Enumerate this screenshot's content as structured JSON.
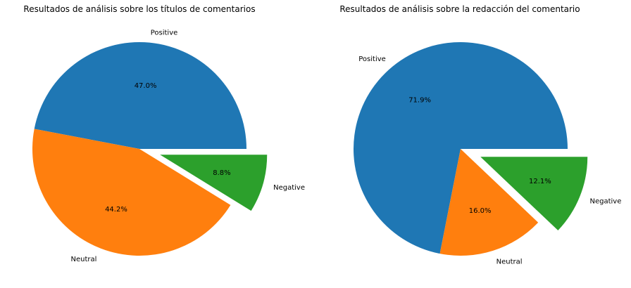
{
  "chart_data": [
    {
      "type": "pie",
      "title": "Resultados de análisis sobre los títulos de comentarios",
      "labels": [
        "Positive",
        "Neutral",
        "Negative"
      ],
      "values": [
        47.0,
        44.2,
        8.8
      ],
      "value_labels": [
        "47.0%",
        "44.2%",
        "8.8%"
      ],
      "colors": [
        "#1f77b4",
        "#ff7f0e",
        "#2ca02c"
      ],
      "explode": [
        0,
        0,
        0.2
      ]
    },
    {
      "type": "pie",
      "title": "Resultados de análisis sobre la redacción del comentario",
      "labels": [
        "Positive",
        "Neutral",
        "Negative"
      ],
      "values": [
        71.9,
        16.0,
        12.1
      ],
      "value_labels": [
        "71.9%",
        "16.0%",
        "12.1%"
      ],
      "colors": [
        "#1f77b4",
        "#ff7f0e",
        "#2ca02c"
      ],
      "explode": [
        0,
        0,
        0.2
      ]
    }
  ]
}
